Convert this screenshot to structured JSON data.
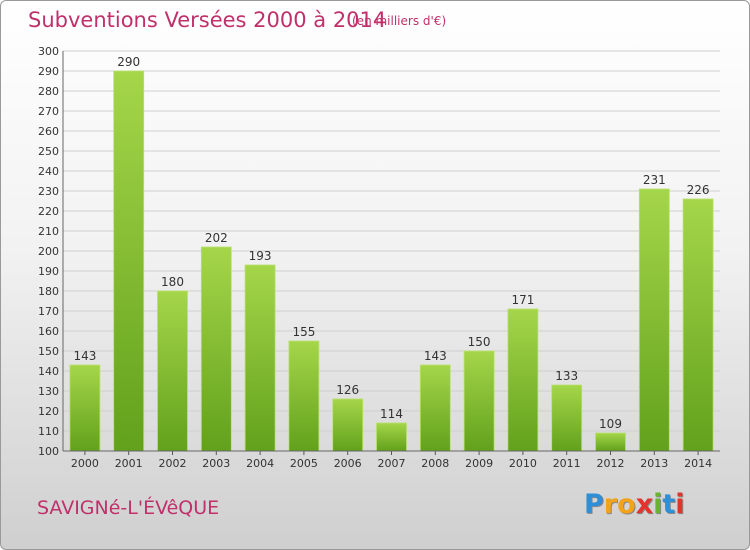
{
  "header": {
    "title": "Subventions Versées 2000 à 2014",
    "unit": "(en milliers d'€)"
  },
  "footer": {
    "commune": "SAVIGNé-L'ÉVêQUE",
    "logo_letters": [
      "P",
      "r",
      "o",
      "x",
      "i",
      "t",
      "i"
    ],
    "logo_colors": [
      "#2f8fd6",
      "#f2a31b",
      "#f2a31b",
      "#e3332f",
      "#6ab42d",
      "#2f8fd6",
      "#e3332f"
    ]
  },
  "colors": {
    "bar_light": "#a5d64a",
    "bar_dark": "#62a11c",
    "grid": "#cfcfcf",
    "text": "#333333",
    "accent": "#c0306a"
  },
  "chart_data": {
    "type": "bar",
    "title": "Subventions Versées 2000 à 2014",
    "subtitle": "(en milliers d'€)",
    "categories": [
      "2000",
      "2001",
      "2002",
      "2003",
      "2004",
      "2005",
      "2006",
      "2007",
      "2008",
      "2009",
      "2010",
      "2011",
      "2012",
      "2013",
      "2014"
    ],
    "values": [
      143,
      290,
      180,
      202,
      193,
      155,
      126,
      114,
      143,
      150,
      171,
      133,
      109,
      231,
      226
    ],
    "ylim": [
      100,
      300
    ],
    "ytick_step": 10,
    "xlabel": "",
    "ylabel": "",
    "grid": true,
    "data_labels": true
  }
}
